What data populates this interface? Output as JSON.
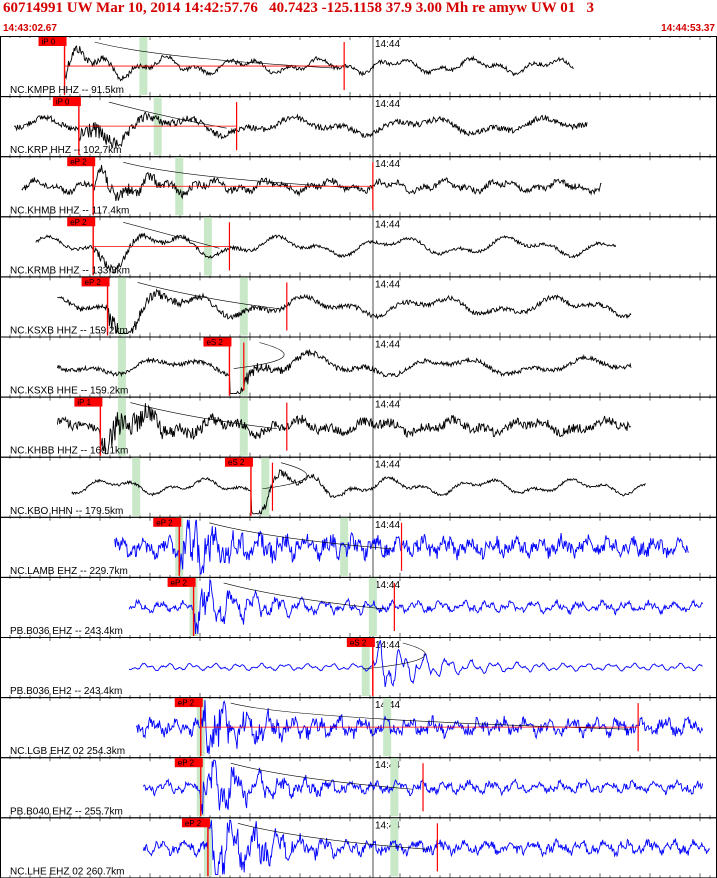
{
  "header": {
    "title": "60714991 UW Mar 10, 2014 14:42:57.76   40.7423 -125.1158 37.9 3.00 Mh re amyw UW 01   3",
    "start_time": "14:43:02.67",
    "end_time": "14:44:53.37"
  },
  "time_axis_label": "14:44",
  "colors": {
    "velocity_trace": "#000000",
    "short_period_trace": "#0000ff",
    "pick": "#ff0000",
    "theoretical_window": "#c8e8c8",
    "frame": "#000000",
    "accent_text": "#d40000"
  },
  "traces": [
    {
      "label": "NC.KMPB HHZ -- 91.5km",
      "pick": "iP 0",
      "color": "black",
      "amp": 9,
      "freq": 0.9,
      "noise": 0.3,
      "burst": 1.0,
      "t0": 0.09,
      "t1": 0.8,
      "pickx": 0.09,
      "green": 0.2,
      "green2": 0.0,
      "red": 0.48,
      "redline": true
    },
    {
      "label": "NC.KRP HHZ -- 102.7km",
      "pick": "iP 0",
      "color": "black",
      "amp": 10,
      "freq": 0.55,
      "noise": 0.4,
      "burst": 1.3,
      "t0": 0.02,
      "t1": 0.82,
      "pickx": 0.11,
      "green": 0.22,
      "green2": 0.0,
      "red": 0.33,
      "redline": true
    },
    {
      "label": "NC.KHMB HHZ -- 117.4km",
      "pick": "eP 2",
      "color": "black",
      "amp": 7,
      "freq": 1.2,
      "noise": 0.6,
      "burst": 1.2,
      "t0": 0.03,
      "t1": 0.84,
      "pickx": 0.13,
      "green": 0.25,
      "green2": 0.0,
      "red": 0.52,
      "redline": true
    },
    {
      "label": "NC.KRMB HHZ -- 133.3km",
      "pick": "eP 2",
      "color": "black",
      "amp": 11,
      "freq": 0.6,
      "noise": 0.2,
      "burst": 1.1,
      "t0": 0.05,
      "t1": 0.86,
      "pickx": 0.13,
      "green": 0.29,
      "green2": 0.0,
      "red": 0.32,
      "redline": true
    },
    {
      "label": "NC.KSXB HHZ -- 159.2km",
      "pick": "eP 2",
      "color": "black",
      "amp": 11,
      "freq": 0.55,
      "noise": 0.3,
      "burst": 1.5,
      "t0": 0.08,
      "t1": 0.88,
      "pickx": 0.15,
      "green": 0.17,
      "green2": 0.34,
      "red": 0.4,
      "redline": false
    },
    {
      "label": "NC.KSXB HHE -- 159.2km",
      "pick": "eS 2",
      "color": "black",
      "amp": 10,
      "freq": 0.5,
      "noise": 0.3,
      "burst": 1.5,
      "t0": 0.08,
      "t1": 0.88,
      "pickx": 0.32,
      "green": 0.17,
      "green2": 0.34,
      "red": 0.34,
      "redline": false
    },
    {
      "label": "NC.KHBB HHZ -- 160.1km",
      "pick": "iP 1",
      "color": "black",
      "amp": 8,
      "freq": 0.9,
      "noise": 0.8,
      "burst": 1.6,
      "t0": 0.08,
      "t1": 0.88,
      "pickx": 0.14,
      "green": 0.17,
      "green2": 0.34,
      "red": 0.4,
      "redline": false
    },
    {
      "label": "NC.KBO HHN -- 179.5km",
      "pick": "eS 2",
      "color": "black",
      "amp": 9,
      "freq": 0.75,
      "noise": 0.2,
      "burst": 1.6,
      "t0": 0.1,
      "t1": 0.9,
      "pickx": 0.35,
      "green": 0.19,
      "green2": 0.37,
      "red": 0.38,
      "redline": false
    },
    {
      "label": "NC.LAMB EHZ -- 229.7km",
      "pick": "eP 2",
      "color": "blue",
      "amp": 9,
      "freq": 3.0,
      "noise": 1.0,
      "burst": 1.4,
      "t0": 0.16,
      "t1": 0.96,
      "pickx": 0.25,
      "green": 0.25,
      "green2": 0.48,
      "red": 0.56,
      "redline": false
    },
    {
      "label": "PB.B036 EHZ -- 243.4km",
      "pick": "eP 2",
      "color": "blue",
      "amp": 6,
      "freq": 3.0,
      "noise": 0.6,
      "burst": 2.2,
      "t0": 0.18,
      "t1": 0.98,
      "pickx": 0.27,
      "green": 0.27,
      "green2": 0.52,
      "red": 0.55,
      "redline": false
    },
    {
      "label": "PB.B036 EH2 -- 243.4km",
      "pick": "eS 2",
      "color": "blue",
      "amp": 4,
      "freq": 3.0,
      "noise": 0.2,
      "burst": 4.0,
      "t0": 0.18,
      "t1": 0.98,
      "pickx": 0.52,
      "green": 0.51,
      "green2": 0.0,
      "red": 0.52,
      "redline": false
    },
    {
      "label": "NC.LGB EHZ 02 254.3km",
      "pick": "eP 2",
      "color": "blue",
      "amp": 8,
      "freq": 3.0,
      "noise": 0.9,
      "burst": 1.5,
      "t0": 0.19,
      "t1": 0.98,
      "pickx": 0.28,
      "green": 0.28,
      "green2": 0.54,
      "red": 0.89,
      "redline": true
    },
    {
      "label": "PB.B040 EHZ -- 255.7km",
      "pick": "eP 2",
      "color": "blue",
      "amp": 6,
      "freq": 3.0,
      "noise": 0.7,
      "burst": 2.5,
      "t0": 0.2,
      "t1": 0.98,
      "pickx": 0.28,
      "green": 0.28,
      "green2": 0.55,
      "red": 0.59,
      "redline": false
    },
    {
      "label": "NC.LHE EHZ 02 260.7km",
      "pick": "eP 2",
      "color": "blue",
      "amp": 7,
      "freq": 3.0,
      "noise": 0.8,
      "burst": 2.4,
      "t0": 0.2,
      "t1": 0.99,
      "pickx": 0.29,
      "green": 0.29,
      "green2": 0.55,
      "red": 0.61,
      "redline": false
    }
  ]
}
